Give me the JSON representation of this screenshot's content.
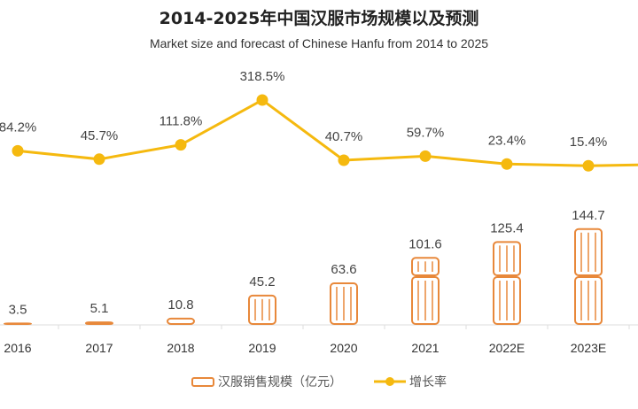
{
  "chart_data": {
    "type": "bar+line",
    "title": "2014-2025年中国汉服市场规模以及预测",
    "subtitle": "Market size and forecast of Chinese Hanfu from 2014 to 2025",
    "categories": [
      "2016",
      "2017",
      "2018",
      "2019",
      "2020",
      "2021",
      "2022E",
      "2023E"
    ],
    "series": [
      {
        "name": "汉服销售规模（亿元）",
        "type": "pictorial-bar",
        "values": [
          3.5,
          5.1,
          10.8,
          45.2,
          63.6,
          101.6,
          125.4,
          144.7
        ],
        "labels": [
          "3.5",
          "5.1",
          "10.8",
          "45.2",
          "63.6",
          "101.6",
          "125.4",
          "144.7"
        ],
        "color": "#E8883A"
      },
      {
        "name": "增长率",
        "type": "line",
        "values": [
          84.2,
          45.7,
          111.8,
          318.5,
          40.7,
          59.7,
          23.4,
          15.4
        ],
        "labels": [
          "84.2%",
          "45.7%",
          "111.8%",
          "318.5%",
          "40.7%",
          "59.7%",
          "23.4%",
          "15.4%"
        ],
        "unit": "%",
        "color": "#F5B90F"
      }
    ],
    "legend": "bottom",
    "grid": false
  }
}
